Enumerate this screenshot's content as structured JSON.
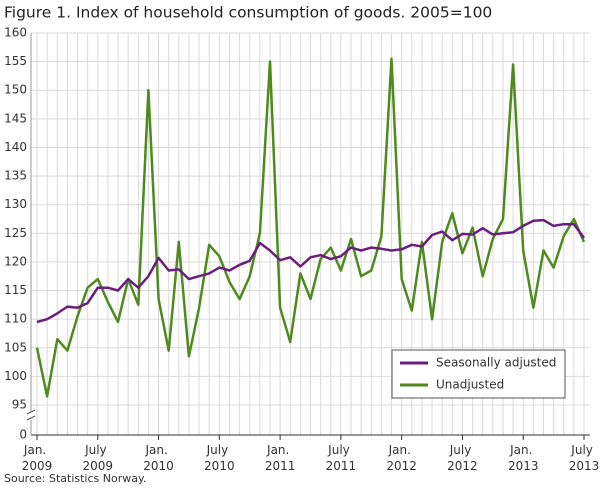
{
  "chart_data": {
    "type": "line",
    "title": "Figure 1. Index of household consumption of goods. 2005=100",
    "source": "Source: Statistics Norway.",
    "categories": [
      "Jan. 2009",
      null,
      null,
      null,
      null,
      null,
      "July 2009",
      null,
      null,
      null,
      null,
      null,
      "Jan. 2010",
      null,
      null,
      null,
      null,
      null,
      "July 2010",
      null,
      null,
      null,
      null,
      null,
      "Jan. 2011",
      null,
      null,
      null,
      null,
      null,
      "July 2011",
      null,
      null,
      null,
      null,
      null,
      "Jan. 2012",
      null,
      null,
      null,
      null,
      null,
      "July 2012",
      null,
      null,
      null,
      null,
      null,
      "Jan. 2013",
      null,
      null,
      null,
      null,
      null,
      "July 2013"
    ],
    "series": [
      {
        "name": "Seasonally adjusted",
        "color": "#6b1f7c",
        "values": [
          109.5,
          110,
          111,
          112.2,
          112,
          112.8,
          115.5,
          115.5,
          115,
          117,
          115.5,
          117.5,
          120.7,
          118.5,
          118.7,
          117,
          117.5,
          118,
          119,
          118.5,
          119.5,
          120.2,
          123.3,
          122,
          120.3,
          120.8,
          119.2,
          120.8,
          121.2,
          120.5,
          121,
          122.5,
          122,
          122.5,
          122.3,
          122,
          122.2,
          123,
          122.7,
          124.7,
          125.3,
          123.8,
          124.9,
          124.8,
          125.9,
          124.8,
          125,
          125.2,
          126.3,
          127.2,
          127.3,
          126.3,
          126.6,
          126.6,
          124.2
        ]
      },
      {
        "name": "Unadjusted",
        "color": "#4e8a1e",
        "values": [
          105,
          96.5,
          106.5,
          104.5,
          110.5,
          115.5,
          117,
          113,
          109.5,
          117,
          112.5,
          150,
          113.5,
          104.5,
          123.5,
          103.5,
          112,
          123,
          121,
          116.5,
          113.5,
          117.5,
          125,
          155,
          112,
          106,
          118,
          113.5,
          120.5,
          122.5,
          118.5,
          124,
          117.5,
          118.5,
          124.5,
          155.5,
          117,
          111.5,
          123.5,
          110,
          123.5,
          128.5,
          121.5,
          126,
          117.5,
          124,
          127.5,
          154.5,
          122,
          112,
          122,
          119,
          124.5,
          127.5,
          123.5
        ]
      }
    ],
    "ylim": [
      0,
      160
    ],
    "yticks": [
      0,
      95,
      100,
      105,
      110,
      115,
      120,
      125,
      130,
      135,
      140,
      145,
      150,
      155,
      160
    ],
    "axis_break": true,
    "grid": true,
    "legend": "lower right"
  }
}
